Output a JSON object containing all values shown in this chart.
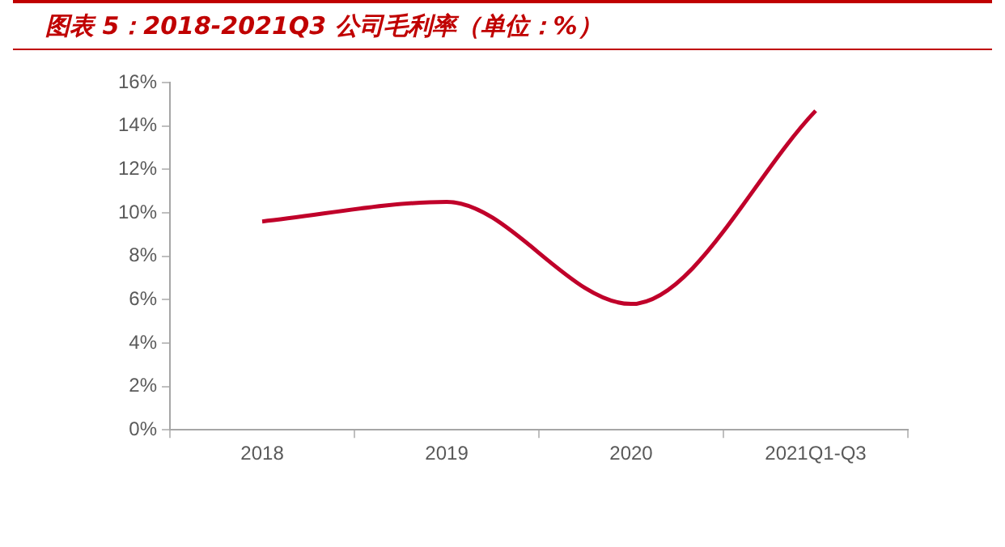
{
  "chart_data": {
    "type": "line",
    "title": "图表 5：2018-2021Q3 公司毛利率（单位：%）",
    "categories": [
      "2018",
      "2019",
      "2020",
      "2021Q1-Q3"
    ],
    "series": [
      {
        "color": "#c0002a",
        "values": [
          9.6,
          10.5,
          5.8,
          14.7
        ]
      }
    ],
    "ylim": [
      0,
      16
    ],
    "yticks": [
      {
        "value": 0,
        "label": "0%"
      },
      {
        "value": 2,
        "label": "2%"
      },
      {
        "value": 4,
        "label": "4%"
      },
      {
        "value": 6,
        "label": "6%"
      },
      {
        "value": 8,
        "label": "8%"
      },
      {
        "value": 10,
        "label": "10%"
      },
      {
        "value": 12,
        "label": "12%"
      },
      {
        "value": 14,
        "label": "14%"
      },
      {
        "value": 16,
        "label": "16%"
      }
    ],
    "grid": false,
    "legend": false,
    "marker": "none",
    "line_style": "solid"
  }
}
